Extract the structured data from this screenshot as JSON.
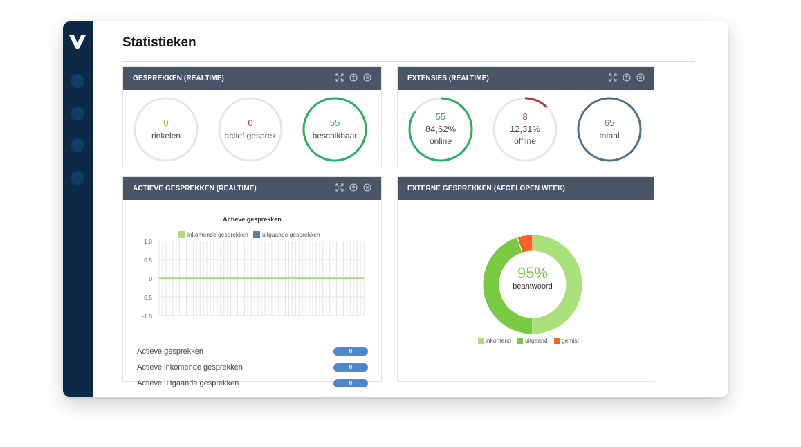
{
  "app": {
    "page_title": "Statistieken"
  },
  "sidebar": {
    "items": [
      "nav-1",
      "nav-2",
      "nav-3",
      "nav-4"
    ]
  },
  "panels": {
    "gesprekken": {
      "title": "GESPREKKEN (REALTIME)",
      "stats": [
        {
          "value": "0",
          "label": "rinkelen",
          "color": "#f39c12",
          "fraction": 0
        },
        {
          "value": "0",
          "label": "actief gesprek",
          "color": "#c0392b",
          "fraction": 0
        },
        {
          "value": "55",
          "label": "beschikbaar",
          "color": "#27ae60",
          "fraction": 1
        }
      ]
    },
    "extensies": {
      "title": "EXTENSIES (REALTIME)",
      "stats": [
        {
          "value": "55",
          "percent": "84,62%",
          "label": "online",
          "color": "#27ae60",
          "fraction": 0.8462
        },
        {
          "value": "8",
          "percent": "12,31%",
          "label": "offline",
          "color": "#b03a2e",
          "fraction": 0.1231
        },
        {
          "value": "65",
          "label": "totaal",
          "color": "#4a7394",
          "fraction": 1
        }
      ]
    },
    "actieve": {
      "title": "ACTIEVE GESPREKKEN (REALTIME)",
      "rows": [
        {
          "label": "Actieve gesprekken",
          "value": "0"
        },
        {
          "label": "Actieve inkomende gesprekken",
          "value": "0"
        },
        {
          "label": "Actieve uitgaande gesprekken",
          "value": "0"
        }
      ]
    },
    "externe": {
      "title": "EXTERNE GESPREKKEN (AFGELOPEN WEEK)",
      "center_value": "95%",
      "center_label": "beantwoord",
      "legend": [
        {
          "label": "inkomend",
          "color": "#a8e07a"
        },
        {
          "label": "uitgaand",
          "color": "#7ac943"
        },
        {
          "label": "gemist",
          "color": "#f26522"
        }
      ]
    }
  },
  "chart_data": [
    {
      "type": "line",
      "title": "Actieve gesprekken",
      "series": [
        {
          "name": "inkomende gesprekken",
          "color": "#a8e07a",
          "values": [
            0,
            0
          ]
        },
        {
          "name": "uitgaande gesprekken",
          "color": "#5a7f9e",
          "values": [
            0,
            0
          ]
        }
      ],
      "yticks": [
        "1.0",
        "0.5",
        "0",
        "-0.5",
        "-1.0"
      ],
      "ylim": [
        -1.0,
        1.0
      ],
      "grid": true,
      "legend": "top"
    },
    {
      "type": "pie",
      "title": "",
      "slices": [
        {
          "name": "inkomend",
          "value": 50,
          "color": "#a8e07a"
        },
        {
          "name": "uitgaand",
          "value": 45,
          "color": "#7ac943"
        },
        {
          "name": "gemist",
          "value": 5,
          "color": "#f26522"
        }
      ],
      "legend": "bottom"
    }
  ]
}
